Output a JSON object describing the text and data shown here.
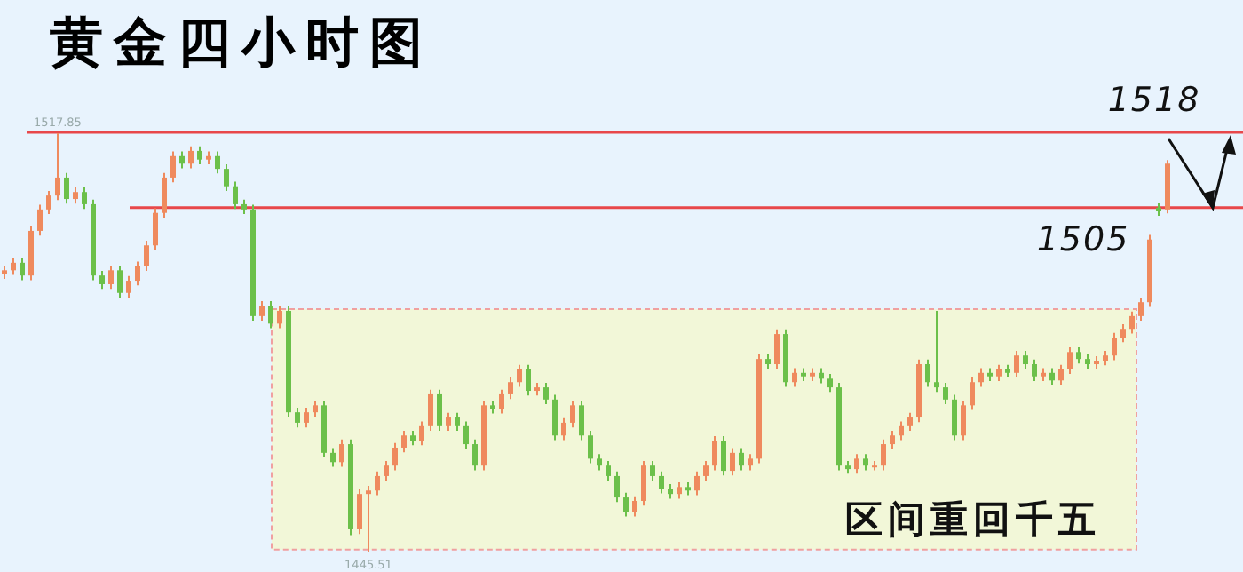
{
  "chart_data": {
    "type": "candlestick",
    "title": "黄金四小时图",
    "categories": [
      null,
      null,
      null,
      null,
      null,
      null,
      null,
      null,
      null,
      null,
      null,
      null,
      null,
      null,
      null,
      null,
      null,
      null,
      null,
      null,
      null,
      null,
      null,
      null,
      null,
      null,
      null,
      null,
      null,
      null,
      null,
      null,
      null,
      null,
      null,
      null,
      null,
      null,
      null,
      null,
      null,
      null,
      null,
      null,
      null,
      null,
      null,
      null,
      null,
      null,
      null,
      null,
      null,
      null,
      null,
      null,
      null,
      null,
      null,
      null,
      null,
      null,
      null,
      null,
      null,
      null,
      null,
      null,
      null,
      null,
      null,
      null,
      null,
      null,
      null,
      null,
      null,
      null,
      null,
      null,
      null,
      null,
      null,
      null,
      null,
      null,
      null,
      null,
      null,
      null,
      null,
      null,
      null,
      null,
      null,
      null,
      null,
      null,
      null,
      null,
      null,
      null,
      null,
      null,
      null,
      null,
      null,
      null,
      null,
      null,
      null,
      null,
      null,
      null,
      null,
      null,
      null,
      null,
      null,
      null,
      null,
      null,
      null,
      null,
      null,
      null,
      null,
      null,
      null,
      null,
      null,
      null
    ],
    "ohlc": [
      [
        1493.5,
        1495.0,
        1492.7,
        1494.2
      ],
      [
        1494.2,
        1496.3,
        1493.4,
        1495.5
      ],
      [
        1495.5,
        1496.3,
        1492.5,
        1493.3
      ],
      [
        1493.3,
        1501.8,
        1492.5,
        1501.0
      ],
      [
        1501.0,
        1505.5,
        1500.2,
        1504.7
      ],
      [
        1504.7,
        1507.9,
        1503.9,
        1507.1
      ],
      [
        1507.1,
        1517.85,
        1506.3,
        1510.2
      ],
      [
        1510.2,
        1511.0,
        1505.7,
        1506.5
      ],
      [
        1506.5,
        1508.5,
        1505.7,
        1507.7
      ],
      [
        1507.7,
        1508.5,
        1504.8,
        1505.6
      ],
      [
        1505.6,
        1506.4,
        1492.5,
        1493.3
      ],
      [
        1493.3,
        1494.1,
        1491.0,
        1491.8
      ],
      [
        1491.8,
        1495.0,
        1491.0,
        1494.2
      ],
      [
        1494.2,
        1495.0,
        1489.5,
        1490.3
      ],
      [
        1490.3,
        1493.2,
        1489.5,
        1492.4
      ],
      [
        1492.4,
        1495.7,
        1491.6,
        1494.9
      ],
      [
        1494.9,
        1499.3,
        1494.1,
        1498.5
      ],
      [
        1498.5,
        1504.9,
        1497.7,
        1504.1
      ],
      [
        1504.1,
        1511.0,
        1503.3,
        1510.2
      ],
      [
        1510.2,
        1514.7,
        1509.4,
        1513.9
      ],
      [
        1513.9,
        1514.7,
        1511.8,
        1512.6
      ],
      [
        1512.6,
        1515.6,
        1511.8,
        1514.8
      ],
      [
        1514.8,
        1515.6,
        1512.5,
        1513.3
      ],
      [
        1513.3,
        1514.7,
        1512.5,
        1513.9
      ],
      [
        1513.9,
        1514.7,
        1510.9,
        1511.7
      ],
      [
        1511.7,
        1512.5,
        1507.9,
        1508.7
      ],
      [
        1508.7,
        1509.5,
        1504.8,
        1505.6
      ],
      [
        1505.6,
        1506.4,
        1503.9,
        1504.7
      ],
      [
        1504.7,
        1505.5,
        1485.5,
        1486.3
      ],
      [
        1486.3,
        1488.9,
        1485.5,
        1488.1
      ],
      [
        1488.1,
        1488.9,
        1484.2,
        1485.0
      ],
      [
        1485.0,
        1488.0,
        1484.2,
        1487.2
      ],
      [
        1487.2,
        1488.0,
        1468.9,
        1469.7
      ],
      [
        1469.7,
        1470.5,
        1467.1,
        1467.9
      ],
      [
        1467.9,
        1470.5,
        1467.1,
        1469.7
      ],
      [
        1469.7,
        1471.7,
        1468.9,
        1470.9
      ],
      [
        1470.9,
        1471.7,
        1461.9,
        1462.7
      ],
      [
        1462.7,
        1463.5,
        1460.3,
        1461.1
      ],
      [
        1461.1,
        1465.0,
        1460.3,
        1464.2
      ],
      [
        1464.2,
        1465.0,
        1448.5,
        1449.5
      ],
      [
        1449.5,
        1456.4,
        1448.7,
        1455.6
      ],
      [
        1455.6,
        1457.0,
        1445.51,
        1456.2
      ],
      [
        1456.2,
        1459.5,
        1455.4,
        1458.7
      ],
      [
        1458.7,
        1461.3,
        1457.9,
        1460.5
      ],
      [
        1460.5,
        1464.4,
        1459.7,
        1463.6
      ],
      [
        1463.6,
        1466.5,
        1462.8,
        1465.7
      ],
      [
        1465.7,
        1466.5,
        1464.0,
        1464.8
      ],
      [
        1464.8,
        1468.1,
        1464.0,
        1467.3
      ],
      [
        1467.3,
        1473.6,
        1466.5,
        1472.8
      ],
      [
        1472.8,
        1473.6,
        1466.5,
        1467.3
      ],
      [
        1467.3,
        1469.6,
        1466.5,
        1468.8
      ],
      [
        1468.8,
        1469.6,
        1466.5,
        1467.3
      ],
      [
        1467.3,
        1468.1,
        1463.4,
        1464.2
      ],
      [
        1464.2,
        1465.0,
        1459.7,
        1460.5
      ],
      [
        1460.5,
        1471.7,
        1459.7,
        1470.9
      ],
      [
        1470.9,
        1471.7,
        1469.5,
        1470.3
      ],
      [
        1470.3,
        1473.6,
        1469.5,
        1472.8
      ],
      [
        1472.8,
        1475.7,
        1472.0,
        1474.9
      ],
      [
        1474.9,
        1477.9,
        1474.1,
        1477.1
      ],
      [
        1477.1,
        1477.9,
        1472.6,
        1473.4
      ],
      [
        1473.4,
        1474.8,
        1472.6,
        1474.0
      ],
      [
        1474.0,
        1474.8,
        1471.1,
        1471.9
      ],
      [
        1471.9,
        1472.7,
        1464.9,
        1465.7
      ],
      [
        1465.7,
        1468.7,
        1464.9,
        1467.9
      ],
      [
        1467.9,
        1471.7,
        1467.1,
        1470.9
      ],
      [
        1470.9,
        1471.7,
        1464.9,
        1465.7
      ],
      [
        1465.7,
        1466.5,
        1460.9,
        1461.7
      ],
      [
        1461.7,
        1462.5,
        1459.7,
        1460.5
      ],
      [
        1460.5,
        1461.3,
        1457.9,
        1458.7
      ],
      [
        1458.7,
        1459.5,
        1454.2,
        1455.0
      ],
      [
        1455.0,
        1455.8,
        1451.7,
        1452.5
      ],
      [
        1452.5,
        1455.2,
        1451.7,
        1454.4
      ],
      [
        1454.4,
        1461.3,
        1453.6,
        1460.5
      ],
      [
        1460.5,
        1461.3,
        1457.9,
        1458.7
      ],
      [
        1458.7,
        1459.5,
        1455.7,
        1456.5
      ],
      [
        1456.5,
        1457.3,
        1454.8,
        1455.6
      ],
      [
        1455.6,
        1457.6,
        1454.8,
        1456.8
      ],
      [
        1456.8,
        1457.6,
        1455.4,
        1456.2
      ],
      [
        1456.2,
        1459.5,
        1455.4,
        1458.7
      ],
      [
        1458.7,
        1461.3,
        1457.9,
        1460.5
      ],
      [
        1460.5,
        1465.6,
        1459.7,
        1464.8
      ],
      [
        1464.8,
        1465.6,
        1458.8,
        1459.6
      ],
      [
        1459.6,
        1463.5,
        1458.8,
        1462.7
      ],
      [
        1462.7,
        1463.5,
        1459.7,
        1460.5
      ],
      [
        1460.5,
        1462.5,
        1459.7,
        1461.7
      ],
      [
        1461.7,
        1479.7,
        1460.9,
        1478.9
      ],
      [
        1478.9,
        1479.7,
        1477.2,
        1478.0
      ],
      [
        1478.0,
        1484.0,
        1477.2,
        1483.2
      ],
      [
        1483.2,
        1484.0,
        1474.1,
        1474.9
      ],
      [
        1474.9,
        1477.3,
        1474.1,
        1476.5
      ],
      [
        1476.5,
        1477.3,
        1475.1,
        1475.9
      ],
      [
        1475.9,
        1477.3,
        1475.1,
        1476.5
      ],
      [
        1476.5,
        1477.3,
        1474.7,
        1475.5
      ],
      [
        1475.5,
        1476.3,
        1473.2,
        1474.0
      ],
      [
        1474.0,
        1474.8,
        1459.7,
        1460.5
      ],
      [
        1460.5,
        1461.3,
        1459.1,
        1459.9
      ],
      [
        1459.9,
        1462.5,
        1459.1,
        1461.7
      ],
      [
        1461.7,
        1462.5,
        1459.7,
        1460.5
      ],
      [
        1460.5,
        1461.3,
        1459.7,
        1460.5
      ],
      [
        1460.5,
        1465.0,
        1459.7,
        1464.2
      ],
      [
        1464.2,
        1466.5,
        1463.4,
        1465.7
      ],
      [
        1465.7,
        1468.1,
        1464.9,
        1467.3
      ],
      [
        1467.3,
        1469.6,
        1466.5,
        1468.8
      ],
      [
        1468.8,
        1478.8,
        1468.0,
        1478.0
      ],
      [
        1478.0,
        1478.8,
        1474.1,
        1474.9
      ],
      [
        1474.9,
        1487.2,
        1473.2,
        1474.0
      ],
      [
        1474.0,
        1474.8,
        1471.1,
        1471.9
      ],
      [
        1471.9,
        1472.7,
        1464.9,
        1465.7
      ],
      [
        1465.7,
        1471.7,
        1464.9,
        1470.9
      ],
      [
        1470.9,
        1475.7,
        1470.1,
        1474.9
      ],
      [
        1474.9,
        1477.3,
        1474.1,
        1476.5
      ],
      [
        1476.5,
        1477.3,
        1475.1,
        1475.9
      ],
      [
        1475.9,
        1477.9,
        1475.1,
        1477.1
      ],
      [
        1477.1,
        1477.9,
        1475.7,
        1476.5
      ],
      [
        1476.5,
        1480.3,
        1475.7,
        1479.5
      ],
      [
        1479.5,
        1480.3,
        1477.2,
        1478.0
      ],
      [
        1478.0,
        1478.8,
        1475.1,
        1475.9
      ],
      [
        1475.9,
        1477.3,
        1475.1,
        1476.5
      ],
      [
        1476.5,
        1477.3,
        1474.4,
        1475.2
      ],
      [
        1475.2,
        1477.9,
        1474.4,
        1477.1
      ],
      [
        1477.1,
        1480.9,
        1476.3,
        1480.1
      ],
      [
        1480.1,
        1480.9,
        1478.1,
        1478.9
      ],
      [
        1478.9,
        1479.7,
        1477.2,
        1478.0
      ],
      [
        1478.0,
        1479.4,
        1477.2,
        1478.6
      ],
      [
        1478.6,
        1480.3,
        1477.8,
        1479.5
      ],
      [
        1479.5,
        1483.4,
        1478.7,
        1482.6
      ],
      [
        1482.6,
        1484.9,
        1481.8,
        1484.1
      ],
      [
        1484.1,
        1487.1,
        1483.3,
        1486.3
      ],
      [
        1486.3,
        1489.5,
        1485.5,
        1488.7
      ],
      [
        1488.7,
        1500.3,
        1487.9,
        1499.5
      ],
      [
        1505.0,
        1505.8,
        1503.6,
        1504.4
      ],
      [
        1504.7,
        1513.2,
        1504.0,
        1512.6
      ]
    ],
    "colors": [
      "#ef8a5e",
      "#ef8a5e",
      "#6cc04a",
      "#ef8a5e",
      "#ef8a5e",
      "#ef8a5e",
      "#ef8a5e",
      "#6cc04a",
      "#ef8a5e",
      "#6cc04a",
      "#6cc04a",
      "#6cc04a",
      "#ef8a5e",
      "#6cc04a",
      "#ef8a5e",
      "#ef8a5e",
      "#ef8a5e",
      "#ef8a5e",
      "#ef8a5e",
      "#ef8a5e",
      "#6cc04a",
      "#ef8a5e",
      "#6cc04a",
      "#ef8a5e",
      "#6cc04a",
      "#6cc04a",
      "#6cc04a",
      "#6cc04a",
      "#6cc04a",
      "#ef8a5e",
      "#6cc04a",
      "#ef8a5e",
      "#6cc04a",
      "#6cc04a",
      "#ef8a5e",
      "#ef8a5e",
      "#6cc04a",
      "#6cc04a",
      "#ef8a5e",
      "#6cc04a",
      "#ef8a5e",
      "#ef8a5e",
      "#ef8a5e",
      "#ef8a5e",
      "#ef8a5e",
      "#ef8a5e",
      "#6cc04a",
      "#ef8a5e",
      "#ef8a5e",
      "#6cc04a",
      "#ef8a5e",
      "#6cc04a",
      "#6cc04a",
      "#6cc04a",
      "#ef8a5e",
      "#6cc04a",
      "#ef8a5e",
      "#ef8a5e",
      "#ef8a5e",
      "#6cc04a",
      "#ef8a5e",
      "#6cc04a",
      "#6cc04a",
      "#ef8a5e",
      "#ef8a5e",
      "#6cc04a",
      "#6cc04a",
      "#6cc04a",
      "#6cc04a",
      "#6cc04a",
      "#6cc04a",
      "#ef8a5e",
      "#ef8a5e",
      "#6cc04a",
      "#6cc04a",
      "#6cc04a",
      "#ef8a5e",
      "#6cc04a",
      "#ef8a5e",
      "#ef8a5e",
      "#ef8a5e",
      "#6cc04a",
      "#ef8a5e",
      "#6cc04a",
      "#ef8a5e",
      "#ef8a5e",
      "#6cc04a",
      "#ef8a5e",
      "#6cc04a",
      "#ef8a5e",
      "#6cc04a",
      "#ef8a5e",
      "#6cc04a",
      "#6cc04a",
      "#6cc04a",
      "#6cc04a",
      "#ef8a5e",
      "#6cc04a",
      "#ef8a5e",
      "#ef8a5e",
      "#ef8a5e",
      "#ef8a5e",
      "#ef8a5e",
      "#ef8a5e",
      "#6cc04a",
      "#6cc04a",
      "#6cc04a",
      "#6cc04a",
      "#ef8a5e",
      "#ef8a5e",
      "#ef8a5e",
      "#6cc04a",
      "#ef8a5e",
      "#6cc04a",
      "#ef8a5e",
      "#6cc04a",
      "#6cc04a",
      "#ef8a5e",
      "#6cc04a",
      "#ef8a5e",
      "#ef8a5e",
      "#6cc04a",
      "#6cc04a",
      "#ef8a5e",
      "#ef8a5e",
      "#ef8a5e",
      "#ef8a5e",
      "#ef8a5e",
      "#ef8a5e",
      "#ef8a5e",
      "#6cc04a",
      "#ef8a5e"
    ],
    "ref_lines": [
      {
        "axis": "y",
        "value": 1518,
        "label": "1518",
        "color": "#e8474a"
      },
      {
        "axis": "y",
        "value": 1505,
        "label": "1505",
        "color": "#e8474a"
      }
    ],
    "bands": [
      {
        "axis": "y",
        "from": 1446,
        "to": 1487.5,
        "label": "区间重回千五",
        "color": "#f2f7d8"
      }
    ],
    "annotations": [
      {
        "text": "1517.85",
        "y": 1517.85
      },
      {
        "text": "1445.51",
        "y": 1445.51
      }
    ]
  }
}
